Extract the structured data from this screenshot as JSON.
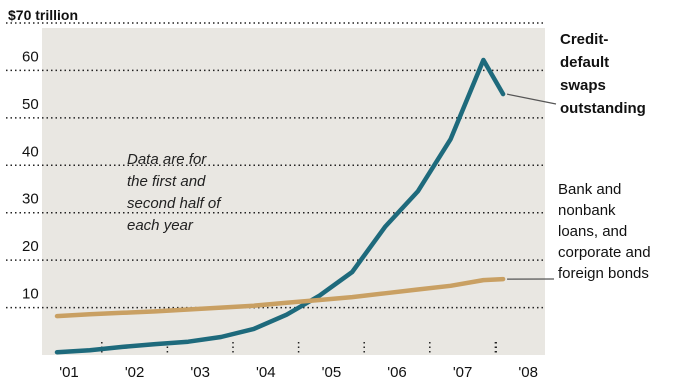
{
  "chart_data": {
    "type": "line",
    "title": "",
    "y_unit_label": "$70 trillion",
    "x_tick_labels": [
      "'01",
      "'02",
      "'03",
      "'04",
      "'05",
      "'06",
      "'07",
      "'08"
    ],
    "y_tick_labels": [
      "10",
      "20",
      "30",
      "40",
      "50",
      "60"
    ],
    "ylim": [
      0,
      70
    ],
    "grid": true,
    "annotation": [
      "Data are for",
      "the first and",
      "second half of",
      "each year"
    ],
    "series": [
      {
        "name": "Credit-default swaps outstanding",
        "label_lines": [
          "Credit-",
          "default",
          "swaps",
          "outstanding"
        ],
        "color": "#1e6a7c",
        "x": [
          2001.0,
          2001.5,
          2002.0,
          2002.5,
          2003.0,
          2003.5,
          2004.0,
          2004.5,
          2005.0,
          2005.5,
          2006.0,
          2006.5,
          2007.0,
          2007.5,
          2007.8
        ],
        "values": [
          0.6,
          1.0,
          1.7,
          2.3,
          2.8,
          3.8,
          5.5,
          8.5,
          12.5,
          17.5,
          27.0,
          34.5,
          45.5,
          62.2,
          55.0
        ]
      },
      {
        "name": "Bank and nonbank loans, and corporate and foreign bonds",
        "label_lines": [
          "Bank and",
          "nonbank",
          "loans, and",
          "corporate and",
          "foreign bonds"
        ],
        "color": "#c9a063",
        "x": [
          2001.0,
          2001.5,
          2002.0,
          2002.5,
          2003.0,
          2003.5,
          2004.0,
          2004.5,
          2005.0,
          2005.5,
          2006.0,
          2006.5,
          2007.0,
          2007.5,
          2007.8
        ],
        "values": [
          8.2,
          8.6,
          8.9,
          9.2,
          9.6,
          10.0,
          10.4,
          11.0,
          11.6,
          12.2,
          13.0,
          13.8,
          14.6,
          15.8,
          16.0
        ]
      }
    ]
  }
}
